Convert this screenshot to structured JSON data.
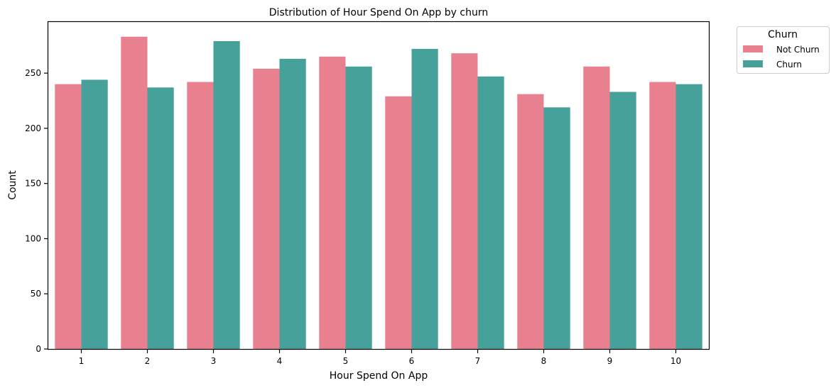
{
  "chart_data": {
    "type": "bar",
    "title": "Distribution of Hour Spend On App by churn",
    "xlabel": "Hour Spend On App",
    "ylabel": "Count",
    "categories": [
      "1",
      "2",
      "3",
      "4",
      "5",
      "6",
      "7",
      "8",
      "9",
      "10"
    ],
    "series": [
      {
        "name": "Not Churn",
        "color": "#e8808f",
        "values": [
          240,
          283,
          242,
          254,
          265,
          229,
          268,
          231,
          256,
          242
        ]
      },
      {
        "name": "Churn",
        "color": "#45a19a",
        "values": [
          244,
          237,
          279,
          263,
          256,
          272,
          247,
          219,
          233,
          240
        ]
      }
    ],
    "ylim": [
      0,
      297
    ],
    "yticks": [
      0,
      50,
      100,
      150,
      200,
      250
    ],
    "grid": false,
    "legend": {
      "title": "Churn",
      "placement": "outside-top-right"
    }
  }
}
